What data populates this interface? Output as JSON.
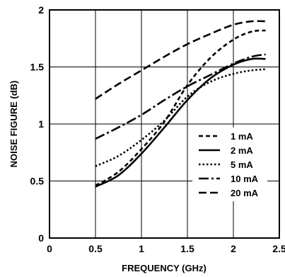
{
  "chart_data": {
    "type": "line",
    "xlabel": "FREQUENCY (GHz)",
    "ylabel": "NOISE FIGURE (dB)",
    "xlim": [
      0,
      2.5
    ],
    "ylim": [
      0,
      2
    ],
    "xticks": [
      "0",
      "0.5",
      "1",
      "1.5",
      "2",
      "2.5"
    ],
    "yticks": [
      "0",
      "0.5",
      "1",
      "1.5",
      "2"
    ],
    "grid": true,
    "legend_position": "lower-right",
    "series": [
      {
        "name": "1 mA",
        "dash": "short-dash",
        "x": [
          0.5,
          0.75,
          1.0,
          1.25,
          1.5,
          1.75,
          2.0,
          2.2,
          2.35
        ],
        "y": [
          0.46,
          0.58,
          0.78,
          1.02,
          1.34,
          1.58,
          1.74,
          1.81,
          1.82
        ]
      },
      {
        "name": "2 mA",
        "dash": "solid",
        "x": [
          0.5,
          0.75,
          1.0,
          1.25,
          1.5,
          1.75,
          2.0,
          2.2,
          2.35
        ],
        "y": [
          0.45,
          0.55,
          0.74,
          0.97,
          1.21,
          1.4,
          1.52,
          1.57,
          1.57
        ]
      },
      {
        "name": "5 mA",
        "dash": "dotted",
        "x": [
          0.5,
          0.75,
          1.0,
          1.25,
          1.5,
          1.75,
          2.0,
          2.2,
          2.35
        ],
        "y": [
          0.63,
          0.72,
          0.86,
          1.03,
          1.24,
          1.37,
          1.44,
          1.47,
          1.48
        ]
      },
      {
        "name": "10 mA",
        "dash": "dash-dot",
        "x": [
          0.5,
          0.75,
          1.0,
          1.25,
          1.5,
          1.75,
          2.0,
          2.2,
          2.35
        ],
        "y": [
          0.87,
          0.97,
          1.08,
          1.21,
          1.33,
          1.43,
          1.53,
          1.59,
          1.61
        ]
      },
      {
        "name": "20 mA",
        "dash": "long-dash",
        "x": [
          0.5,
          0.75,
          1.0,
          1.25,
          1.5,
          1.75,
          2.0,
          2.2,
          2.35
        ],
        "y": [
          1.22,
          1.35,
          1.47,
          1.59,
          1.7,
          1.79,
          1.87,
          1.9,
          1.9
        ]
      }
    ]
  }
}
